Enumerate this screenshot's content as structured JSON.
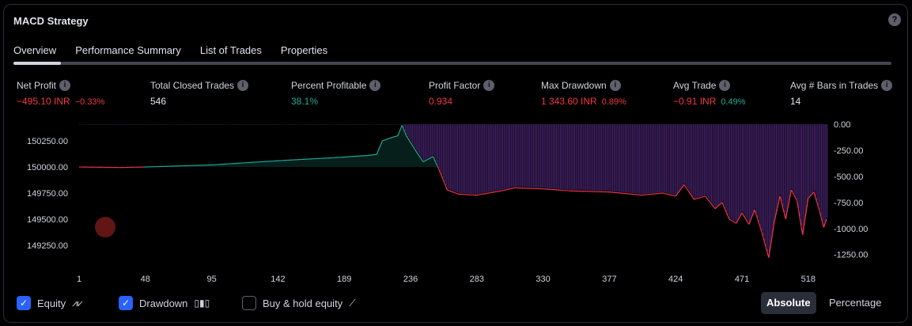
{
  "title": "MACD Strategy",
  "help_icon": "?",
  "tabs": [
    {
      "label": "Overview",
      "active": true
    },
    {
      "label": "Performance Summary"
    },
    {
      "label": "List of Trades"
    },
    {
      "label": "Properties"
    }
  ],
  "stats": [
    {
      "label": "Net Profit",
      "value": "−495.10 INR",
      "sub": "−0.33%",
      "color": "red",
      "subcolor": "red"
    },
    {
      "label": "Total Closed Trades",
      "value": "546",
      "color": "white"
    },
    {
      "label": "Percent Profitable",
      "value": "38.1%",
      "color": "green"
    },
    {
      "label": "Profit Factor",
      "value": "0.934",
      "color": "red"
    },
    {
      "label": "Max Drawdown",
      "value": "1 343.60 INR",
      "sub": "0.89%",
      "color": "red",
      "subcolor": "red"
    },
    {
      "label": "Avg Trade",
      "value": "−0.91 INR",
      "sub": "0.49%",
      "color": "red",
      "subcolor": "green"
    },
    {
      "label": "Avg # Bars in Trades",
      "value": "14",
      "color": "white"
    }
  ],
  "legend": {
    "equity": "Equity",
    "drawdown": "Drawdown",
    "buyhold": "Buy & hold equity",
    "equity_checked": true,
    "drawdown_checked": true,
    "buyhold_checked": false
  },
  "mode": {
    "absolute": "Absolute",
    "percentage": "Percentage",
    "selected": "Absolute"
  },
  "chart_data": {
    "type": "line",
    "x_ticks": [
      "1",
      "48",
      "95",
      "142",
      "189",
      "236",
      "283",
      "330",
      "377",
      "424",
      "471",
      "518"
    ],
    "left_ticks": [
      "150250.00",
      "150000.00",
      "149750.00",
      "149500.00",
      "149250.00"
    ],
    "right_ticks": [
      "0.00",
      "-250.00",
      "-500.00",
      "-750.00",
      "-1000.00",
      "-1250.00"
    ],
    "ylim_left": [
      149120,
      150410
    ],
    "ylim_right": [
      -1290,
      0
    ],
    "xlim": [
      1,
      531
    ],
    "equity": [
      [
        1,
        150000
      ],
      [
        30,
        149995
      ],
      [
        48,
        150000
      ],
      [
        95,
        150020
      ],
      [
        142,
        150060
      ],
      [
        189,
        150095
      ],
      [
        205,
        150110
      ],
      [
        212,
        150120
      ],
      [
        216,
        150250
      ],
      [
        222,
        150280
      ],
      [
        227,
        150300
      ],
      [
        230,
        150400
      ],
      [
        233,
        150300
      ],
      [
        240,
        150150
      ],
      [
        245,
        150050
      ],
      [
        252,
        150100
      ],
      [
        257,
        149950
      ],
      [
        262,
        149780
      ],
      [
        270,
        149740
      ],
      [
        283,
        149730
      ],
      [
        300,
        149770
      ],
      [
        310,
        149800
      ],
      [
        330,
        149790
      ],
      [
        350,
        149770
      ],
      [
        377,
        149760
      ],
      [
        400,
        149730
      ],
      [
        415,
        149750
      ],
      [
        424,
        149720
      ],
      [
        430,
        149830
      ],
      [
        437,
        149690
      ],
      [
        445,
        149720
      ],
      [
        452,
        149600
      ],
      [
        457,
        149660
      ],
      [
        462,
        149500
      ],
      [
        467,
        149460
      ],
      [
        471,
        149560
      ],
      [
        476,
        149450
      ],
      [
        480,
        149590
      ],
      [
        485,
        149380
      ],
      [
        490,
        149130
      ],
      [
        494,
        149480
      ],
      [
        498,
        149720
      ],
      [
        502,
        149500
      ],
      [
        506,
        149780
      ],
      [
        510,
        149680
      ],
      [
        514,
        149350
      ],
      [
        518,
        149700
      ],
      [
        522,
        149760
      ],
      [
        526,
        149580
      ],
      [
        529,
        149420
      ],
      [
        531,
        149500
      ]
    ],
    "colors": {
      "profit": "#22ab94",
      "loss": "#f23645",
      "drawdown": "#7b3fbf"
    }
  }
}
